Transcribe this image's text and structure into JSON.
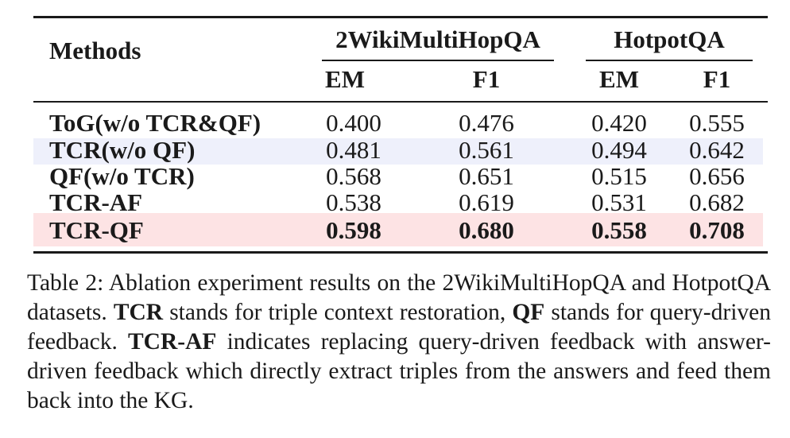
{
  "table": {
    "header": {
      "methods": "Methods",
      "groups": [
        "2WikiMultiHopQA",
        "HotpotQA"
      ],
      "subcols": [
        "EM",
        "F1",
        "EM",
        "F1"
      ]
    },
    "rows": [
      {
        "method": "ToG(w/o TCR&QF)",
        "values": [
          "0.400",
          "0.476",
          "0.420",
          "0.555"
        ],
        "highlight": "none",
        "bold": false
      },
      {
        "method": "TCR(w/o QF)",
        "values": [
          "0.481",
          "0.561",
          "0.494",
          "0.642"
        ],
        "highlight": "#eef0fb",
        "bold": false
      },
      {
        "method": "QF(w/o TCR)",
        "values": [
          "0.568",
          "0.651",
          "0.515",
          "0.656"
        ],
        "highlight": "none",
        "bold": false
      },
      {
        "method": "TCR-AF",
        "values": [
          "0.538",
          "0.619",
          "0.531",
          "0.682"
        ],
        "highlight": "none",
        "bold": false
      },
      {
        "method": "TCR-QF",
        "values": [
          "0.598",
          "0.680",
          "0.558",
          "0.708"
        ],
        "highlight": "#fde3e4",
        "bold": true
      }
    ]
  },
  "caption": {
    "p1": "Table 2:  Ablation experiment results on the 2WikiMultiHopQA and HotpotQA datasets. ",
    "b1": "TCR",
    "p2": " stands for triple context restoration, ",
    "b2": "QF",
    "p3": " stands for query-driven feedback. ",
    "b3": "TCR-AF",
    "p4": " indicates replacing query-driven feedback with answer-driven feedback which directly extract triples from the answers and feed them back into the KG."
  }
}
